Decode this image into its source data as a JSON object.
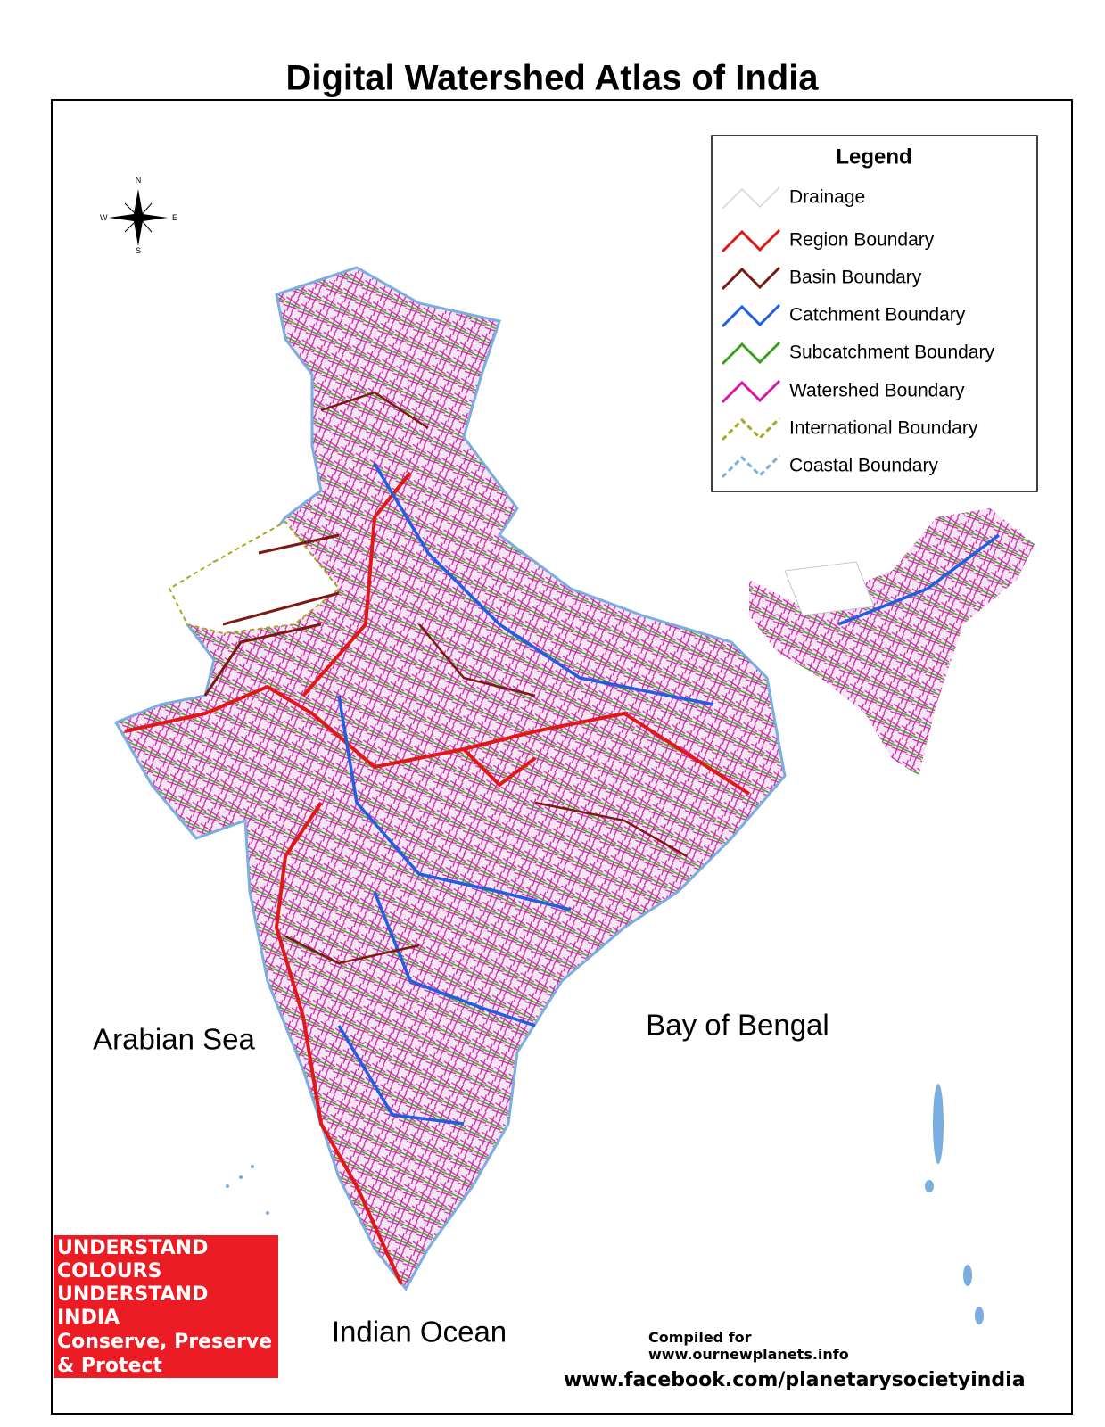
{
  "title": "Digital Watershed Atlas of India",
  "compass": {
    "n": "N",
    "s": "S",
    "e": "E",
    "w": "W"
  },
  "legend": {
    "title": "Legend",
    "items": [
      {
        "label": "Drainage",
        "color": "#d0d4d8",
        "style": "solid"
      },
      {
        "label": "Region Boundary",
        "color": "#e01818",
        "style": "solid"
      },
      {
        "label": "Basin Boundary",
        "color": "#7a1a10",
        "style": "solid"
      },
      {
        "label": "Catchment Boundary",
        "color": "#1f5fe0",
        "style": "solid"
      },
      {
        "label": "Subcatchment Boundary",
        "color": "#3aa01e",
        "style": "solid"
      },
      {
        "label": "Watershed Boundary",
        "color": "#d01aa8",
        "style": "solid"
      },
      {
        "label": "International Boundary",
        "color": "#a8a820",
        "style": "dashed"
      },
      {
        "label": "Coastal Boundary",
        "color": "#7aaee0",
        "style": "dashed"
      }
    ]
  },
  "water_labels": [
    "Arabian Sea",
    "Bay of Bengal",
    "Indian Ocean"
  ],
  "banner": [
    "UNDERSTAND",
    "COLOURS",
    "UNDERSTAND",
    "INDIA",
    "Conserve, Preserve",
    "& Protect"
  ],
  "credits": [
    "Compiled for",
    "www.ournewplanets.info",
    "www.facebook.com/planetarysocietyindia"
  ]
}
